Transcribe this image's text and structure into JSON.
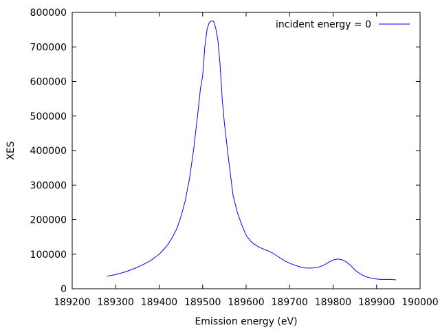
{
  "chart_data": {
    "type": "line",
    "xlabel": "Emission energy (eV)",
    "ylabel": "XES",
    "xlim": [
      189200,
      190000
    ],
    "ylim": [
      0,
      800000
    ],
    "xticks": [
      189200,
      189300,
      189400,
      189500,
      189600,
      189700,
      189800,
      189900,
      190000
    ],
    "yticks": [
      0,
      100000,
      200000,
      300000,
      400000,
      500000,
      600000,
      700000,
      800000
    ],
    "grid": false,
    "legend_position": "top-right",
    "series": [
      {
        "name": "incident energy = 0",
        "color": "#0000ff",
        "x": [
          189280,
          189300,
          189320,
          189340,
          189360,
          189380,
          189400,
          189410,
          189420,
          189430,
          189440,
          189450,
          189460,
          189470,
          189480,
          189490,
          189495,
          189500,
          189505,
          189510,
          189515,
          189520,
          189525,
          189530,
          189535,
          189540,
          189545,
          189550,
          189560,
          189570,
          189580,
          189590,
          189600,
          189610,
          189620,
          189630,
          189640,
          189650,
          189660,
          189670,
          189680,
          189690,
          189700,
          189710,
          189720,
          189730,
          189740,
          189750,
          189760,
          189770,
          189780,
          189790,
          189800,
          189810,
          189820,
          189830,
          189840,
          189850,
          189860,
          189870,
          189880,
          189890,
          189900,
          189910,
          189920,
          189930,
          189945
        ],
        "y": [
          36000,
          41000,
          48000,
          57000,
          68000,
          81000,
          100000,
          113000,
          128000,
          148000,
          172000,
          208000,
          255000,
          320000,
          410000,
          520000,
          580000,
          615000,
          700000,
          750000,
          770000,
          775000,
          775000,
          755000,
          720000,
          650000,
          550000,
          480000,
          370000,
          270000,
          220000,
          185000,
          155000,
          138000,
          128000,
          120000,
          115000,
          110000,
          104000,
          96000,
          88000,
          80000,
          74000,
          69000,
          65000,
          61000,
          60000,
          60000,
          61000,
          64000,
          69000,
          77000,
          83000,
          86000,
          84000,
          78000,
          68000,
          55000,
          45000,
          38000,
          33000,
          30000,
          28000,
          27000,
          27000,
          27000,
          26000
        ]
      }
    ]
  }
}
